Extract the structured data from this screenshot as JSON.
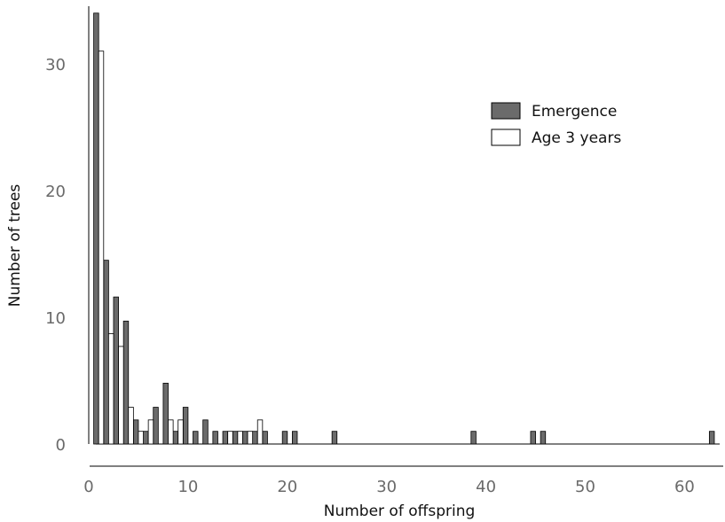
{
  "chart_data": {
    "type": "bar",
    "xlabel": "Number of offspring",
    "ylabel": "Number of trees",
    "xlim": [
      0,
      63
    ],
    "ylim": [
      0,
      34
    ],
    "x_ticks": [
      0,
      10,
      20,
      30,
      40,
      50,
      60
    ],
    "y_ticks": [
      0,
      10,
      20,
      30
    ],
    "grid": false,
    "legend_position": "top-right",
    "series": [
      {
        "name": "Emergence",
        "color": "#6b6b6b",
        "points": [
          {
            "x": 1,
            "y": 34
          },
          {
            "x": 2,
            "y": 14.5
          },
          {
            "x": 3,
            "y": 11.6
          },
          {
            "x": 4,
            "y": 9.7
          },
          {
            "x": 5,
            "y": 1.9
          },
          {
            "x": 6,
            "y": 1
          },
          {
            "x": 7,
            "y": 2.9
          },
          {
            "x": 8,
            "y": 4.8
          },
          {
            "x": 9,
            "y": 1
          },
          {
            "x": 10,
            "y": 2.9
          },
          {
            "x": 11,
            "y": 1
          },
          {
            "x": 12,
            "y": 1.9
          },
          {
            "x": 13,
            "y": 1
          },
          {
            "x": 14,
            "y": 1
          },
          {
            "x": 15,
            "y": 1
          },
          {
            "x": 16,
            "y": 1
          },
          {
            "x": 17,
            "y": 1
          },
          {
            "x": 18,
            "y": 1
          },
          {
            "x": 20,
            "y": 1
          },
          {
            "x": 21,
            "y": 1
          },
          {
            "x": 25,
            "y": 1
          },
          {
            "x": 39,
            "y": 1
          },
          {
            "x": 45,
            "y": 1
          },
          {
            "x": 46,
            "y": 1
          },
          {
            "x": 63,
            "y": 1
          }
        ]
      },
      {
        "name": "Age 3 years",
        "color": "#ffffff",
        "points": [
          {
            "x": 1,
            "y": 31
          },
          {
            "x": 2,
            "y": 8.7
          },
          {
            "x": 3,
            "y": 7.7
          },
          {
            "x": 4,
            "y": 2.9
          },
          {
            "x": 5,
            "y": 1
          },
          {
            "x": 6,
            "y": 1.9
          },
          {
            "x": 8,
            "y": 1.9
          },
          {
            "x": 9,
            "y": 1.9
          },
          {
            "x": 14,
            "y": 1
          },
          {
            "x": 15,
            "y": 1
          },
          {
            "x": 16,
            "y": 1
          },
          {
            "x": 17,
            "y": 1.9
          }
        ]
      }
    ]
  }
}
